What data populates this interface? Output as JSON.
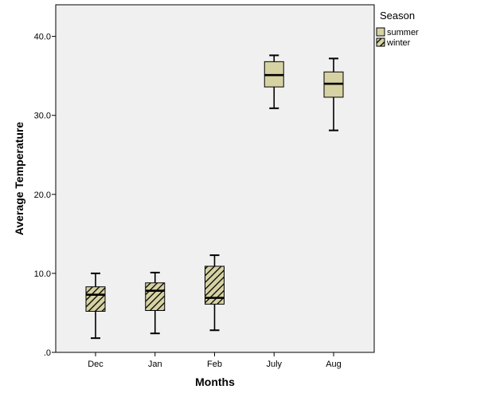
{
  "chart_data": {
    "type": "boxplot",
    "title": "",
    "xlabel": "Months",
    "ylabel": "Average Temperature",
    "ylim": [
      0,
      44
    ],
    "yticks": [
      0,
      10,
      20,
      30,
      40
    ],
    "ytick_labels": [
      ".0",
      "10.0",
      "20.0",
      "30.0",
      "40.0"
    ],
    "categories": [
      "Dec",
      "Jan",
      "Feb",
      "July",
      "Aug"
    ],
    "legend": {
      "title": "Season",
      "placement": "right",
      "entries": [
        {
          "name": "summer",
          "color": "#d6d2a3",
          "pattern": "solid"
        },
        {
          "name": "winter",
          "color": "#d6d2a3",
          "pattern": "hatched"
        }
      ]
    },
    "boxes": [
      {
        "category": "Dec",
        "season": "winter",
        "min": 1.8,
        "q1": 5.2,
        "median": 7.3,
        "q3": 8.3,
        "max": 10.0
      },
      {
        "category": "Jan",
        "season": "winter",
        "min": 2.4,
        "q1": 5.3,
        "median": 7.8,
        "q3": 8.8,
        "max": 10.1
      },
      {
        "category": "Feb",
        "season": "winter",
        "min": 2.8,
        "q1": 6.1,
        "median": 6.9,
        "q3": 10.9,
        "max": 12.3
      },
      {
        "category": "July",
        "season": "summer",
        "min": 30.9,
        "q1": 33.6,
        "median": 35.1,
        "q3": 36.8,
        "max": 37.6
      },
      {
        "category": "Aug",
        "season": "summer",
        "min": 28.1,
        "q1": 32.3,
        "median": 34.0,
        "q3": 35.5,
        "max": 37.2
      }
    ]
  }
}
